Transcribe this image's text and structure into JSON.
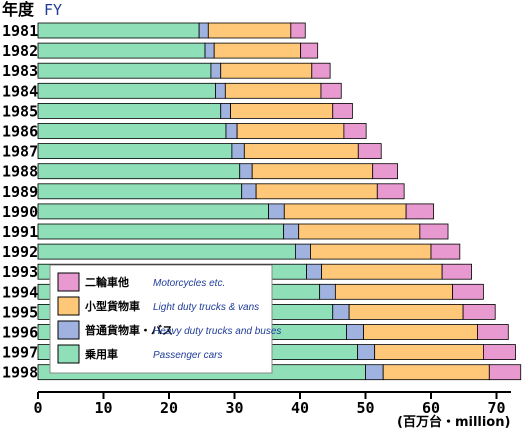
{
  "chart_data": {
    "type": "bar",
    "orientation": "horizontal",
    "stacked": true,
    "title": "年度",
    "title_en": "FY",
    "unit_label": "(百万台・million)",
    "categories": [
      "1981",
      "1982",
      "1983",
      "1984",
      "1985",
      "1986",
      "1987",
      "1988",
      "1989",
      "1990",
      "1991",
      "1992",
      "1993",
      "1994",
      "1995",
      "1996",
      "1997",
      "1998"
    ],
    "series": [
      {
        "name_jp": "乗用車",
        "name": "Passenger cars",
        "color": "#8fe0b8",
        "values": [
          24.6,
          25.5,
          26.4,
          27.1,
          27.9,
          28.7,
          29.6,
          30.8,
          31.1,
          35.2,
          37.5,
          39.3,
          41.0,
          43.0,
          45.0,
          47.1,
          48.8,
          50.0
        ]
      },
      {
        "name_jp": "普通貨物車・バス",
        "name": "Heavy duty trucks and buses",
        "color": "#a0b3e0",
        "values": [
          1.4,
          1.4,
          1.5,
          1.5,
          1.5,
          1.7,
          1.9,
          1.9,
          2.2,
          2.4,
          2.3,
          2.3,
          2.3,
          2.4,
          2.5,
          2.6,
          2.6,
          2.7
        ]
      },
      {
        "name_jp": "小型貨物車",
        "name": "Light duty trucks & vans",
        "color": "#fec878",
        "values": [
          12.6,
          13.2,
          13.9,
          14.6,
          15.6,
          16.3,
          17.4,
          18.4,
          18.5,
          18.6,
          18.5,
          18.4,
          18.4,
          17.9,
          17.4,
          17.4,
          16.6,
          16.2
        ]
      },
      {
        "name_jp": "二輪車他",
        "name": "Motorcycles etc.",
        "color": "#e89ad0",
        "values": [
          2.2,
          2.6,
          2.8,
          3.1,
          3.0,
          3.4,
          3.5,
          3.8,
          4.1,
          4.2,
          4.3,
          4.4,
          4.5,
          4.7,
          4.9,
          4.7,
          4.9,
          4.8
        ]
      }
    ],
    "xlim": [
      0,
      75
    ],
    "xticks": [
      "0",
      "10",
      "20",
      "30",
      "40",
      "50",
      "60",
      "70"
    ],
    "grid": false,
    "legend_position": "bottom-left",
    "legend_order": [
      3,
      2,
      1,
      0
    ]
  }
}
